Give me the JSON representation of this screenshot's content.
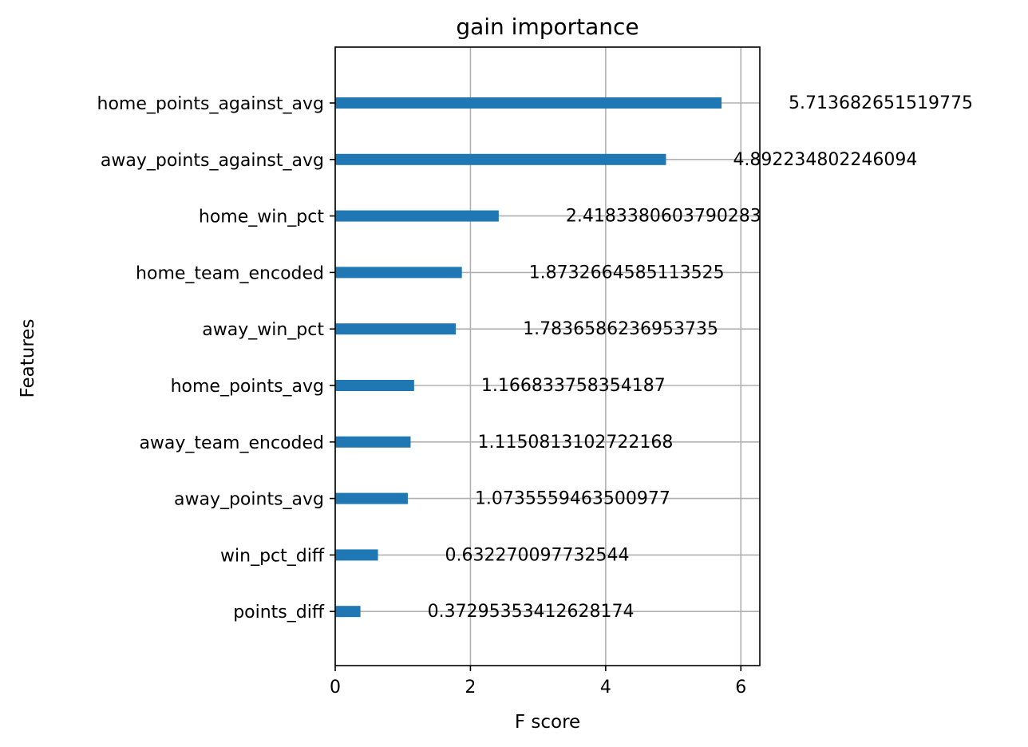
{
  "chart_data": {
    "type": "bar",
    "orientation": "horizontal",
    "title": "gain importance",
    "xlabel": "F score",
    "ylabel": "Features",
    "xlim": [
      0,
      6.28
    ],
    "xticks": [
      0,
      2,
      4,
      6
    ],
    "xtick_labels": [
      "0",
      "2",
      "4",
      "6"
    ],
    "grid": true,
    "bar_color": "#1f77b4",
    "categories": [
      "home_points_against_avg",
      "away_points_against_avg",
      "home_win_pct",
      "home_team_encoded",
      "away_win_pct",
      "home_points_avg",
      "away_team_encoded",
      "away_points_avg",
      "win_pct_diff",
      "points_diff"
    ],
    "values": [
      5.713682651519775,
      4.892234802246094,
      2.4183380603790283,
      1.8732664585113525,
      1.7836586236953735,
      1.166833758354187,
      1.1150813102722168,
      1.0735559463500977,
      0.632270097732544,
      0.37295353412628174
    ],
    "value_labels": [
      "5.713682651519775",
      "4.892234802246094",
      "2.4183380603790283",
      "1.8732664585113525",
      "1.7836586236953735",
      "1.166833758354187",
      "1.1150813102722168",
      "1.0735559463500977",
      "0.632270097732544",
      "0.37295353412628174"
    ]
  }
}
